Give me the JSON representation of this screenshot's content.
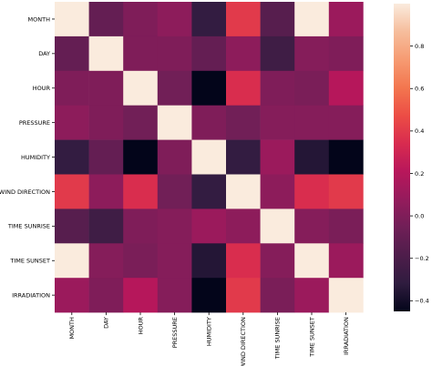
{
  "chart_data": {
    "type": "heatmap",
    "title": "",
    "xlabel": "",
    "ylabel": "",
    "rows": [
      "MONTH",
      "DAY",
      "HOUR",
      "PRESSURE",
      "HUMIDITY",
      "WIND DIRECTION",
      "TIME SUNRISE",
      "TIME SUNSET",
      "IRRADIATION"
    ],
    "columns": [
      "MONTH",
      "DAY",
      "HOUR",
      "PRESSURE",
      "HUMIDITY",
      "WIND DIRECTION",
      "TIME SUNRISE",
      "TIME SUNSET",
      "IRRADIATION"
    ],
    "values": [
      [
        1.0,
        -0.1,
        0.0,
        0.05,
        -0.3,
        0.4,
        -0.15,
        1.0,
        0.1
      ],
      [
        -0.1,
        1.0,
        0.0,
        0.0,
        -0.1,
        0.05,
        -0.25,
        0.02,
        0.0
      ],
      [
        0.0,
        0.0,
        1.0,
        -0.05,
        -0.45,
        0.35,
        0.0,
        -0.02,
        0.2
      ],
      [
        0.05,
        0.0,
        -0.05,
        1.0,
        0.0,
        -0.05,
        0.02,
        0.02,
        0.02
      ],
      [
        -0.3,
        -0.1,
        -0.45,
        0.0,
        1.0,
        -0.3,
        0.1,
        -0.35,
        -0.45
      ],
      [
        0.4,
        0.05,
        0.35,
        -0.05,
        -0.3,
        1.0,
        0.05,
        0.35,
        0.4
      ],
      [
        -0.15,
        -0.25,
        0.0,
        0.02,
        0.1,
        0.05,
        1.0,
        0.02,
        -0.02
      ],
      [
        1.0,
        0.02,
        -0.02,
        0.02,
        -0.35,
        0.35,
        0.02,
        1.0,
        0.1
      ],
      [
        0.1,
        0.0,
        0.2,
        0.02,
        -0.45,
        0.4,
        -0.02,
        0.1,
        1.0
      ]
    ],
    "colorbar": {
      "min": -0.45,
      "max": 1.0,
      "ticks": [
        -0.4,
        -0.2,
        0,
        0.2,
        0.4,
        0.6,
        0.8
      ],
      "tick_labels": [
        "−0.4",
        "−0.2",
        "0.0",
        "0.2",
        "0.4",
        "0.6",
        "0.8"
      ],
      "colormap": "rocket",
      "colormap_stops": [
        "#03051a",
        "#2f1c3f",
        "#4e1d4b",
        "#701f57",
        "#951b5c",
        "#b8175b",
        "#d82b4f",
        "#ec4d45",
        "#f3764f",
        "#f69b72",
        "#f6bd9c",
        "#faebdd"
      ]
    },
    "grid": false,
    "legend": "colorbar-right"
  }
}
